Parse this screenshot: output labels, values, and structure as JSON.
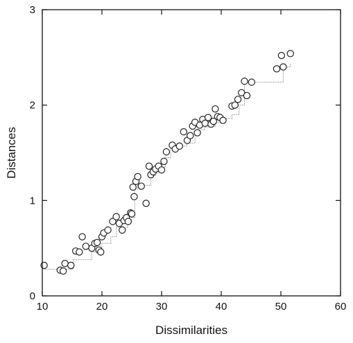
{
  "chart_data": {
    "type": "scatter",
    "title": "",
    "xlabel": "Dissimilarities",
    "ylabel": "Distances",
    "xlim": [
      10,
      60
    ],
    "ylim": [
      0,
      3
    ],
    "xticks": [
      10,
      20,
      30,
      40,
      50,
      60
    ],
    "yticks": [
      0,
      1,
      2,
      3
    ],
    "xtick_labels": [
      "10",
      "20",
      "30",
      "40",
      "50",
      "60"
    ],
    "ytick_labels": [
      "0",
      "1",
      "2",
      "3"
    ],
    "grid": false,
    "legend": "none",
    "colors": {
      "axis": "#111111",
      "points": "#222222",
      "step_line": "#666666",
      "marker_fill": "#ffffff"
    },
    "series": [
      {
        "type": "scatter",
        "x": [
          10.3,
          13.0,
          13.5,
          13.8,
          14.8,
          15.6,
          16.2,
          16.7,
          17.3,
          18.3,
          18.8,
          19.2,
          19.5,
          19.8,
          20.0,
          20.3,
          21.0,
          21.8,
          22.4,
          22.9,
          23.4,
          23.7,
          24.1,
          24.4,
          24.8,
          25.0,
          25.2,
          25.4,
          25.7,
          26.0,
          26.6,
          27.4,
          27.9,
          28.2,
          28.6,
          29.0,
          29.5,
          30.0,
          30.4,
          30.8,
          31.8,
          32.3,
          33.0,
          33.7,
          34.3,
          34.8,
          35.2,
          35.6,
          36.0,
          36.4,
          36.9,
          37.3,
          37.8,
          38.3,
          38.7,
          39.0,
          39.4,
          39.8,
          40.3,
          41.8,
          42.3,
          42.8,
          43.4,
          43.9,
          44.3,
          45.1,
          49.3,
          50.1,
          50.4,
          51.6
        ],
        "y": [
          0.32,
          0.27,
          0.26,
          0.34,
          0.32,
          0.47,
          0.46,
          0.62,
          0.52,
          0.5,
          0.55,
          0.56,
          0.48,
          0.46,
          0.62,
          0.66,
          0.69,
          0.78,
          0.83,
          0.76,
          0.69,
          0.79,
          0.82,
          0.78,
          0.87,
          0.86,
          1.14,
          1.04,
          1.2,
          1.25,
          1.15,
          0.97,
          1.36,
          1.27,
          1.3,
          1.33,
          1.36,
          1.32,
          1.41,
          1.51,
          1.58,
          1.54,
          1.57,
          1.72,
          1.63,
          1.68,
          1.78,
          1.82,
          1.71,
          1.79,
          1.85,
          1.81,
          1.87,
          1.8,
          1.83,
          1.96,
          1.88,
          1.87,
          1.84,
          1.99,
          2.0,
          2.06,
          2.13,
          2.25,
          2.1,
          2.24,
          2.38,
          2.52,
          2.4,
          2.54
        ]
      },
      {
        "type": "step",
        "x": [
          10.3,
          13.0,
          15.2,
          18.3,
          20.0,
          21.5,
          22.4,
          24.3,
          25.0,
          25.5,
          26.0,
          27.5,
          28.2,
          29.0,
          30.0,
          30.6,
          31.5,
          33.0,
          34.2,
          35.6,
          36.4,
          37.2,
          38.0,
          39.0,
          40.0,
          41.8,
          43.0,
          43.9,
          49.3,
          50.4,
          51.6
        ],
        "y": [
          0.28,
          0.28,
          0.38,
          0.46,
          0.55,
          0.62,
          0.72,
          0.78,
          0.82,
          1.12,
          1.16,
          1.16,
          1.26,
          1.3,
          1.35,
          1.45,
          1.55,
          1.57,
          1.6,
          1.68,
          1.74,
          1.77,
          1.78,
          1.82,
          1.86,
          1.9,
          2.0,
          2.24,
          2.24,
          2.4,
          2.43
        ]
      }
    ]
  }
}
